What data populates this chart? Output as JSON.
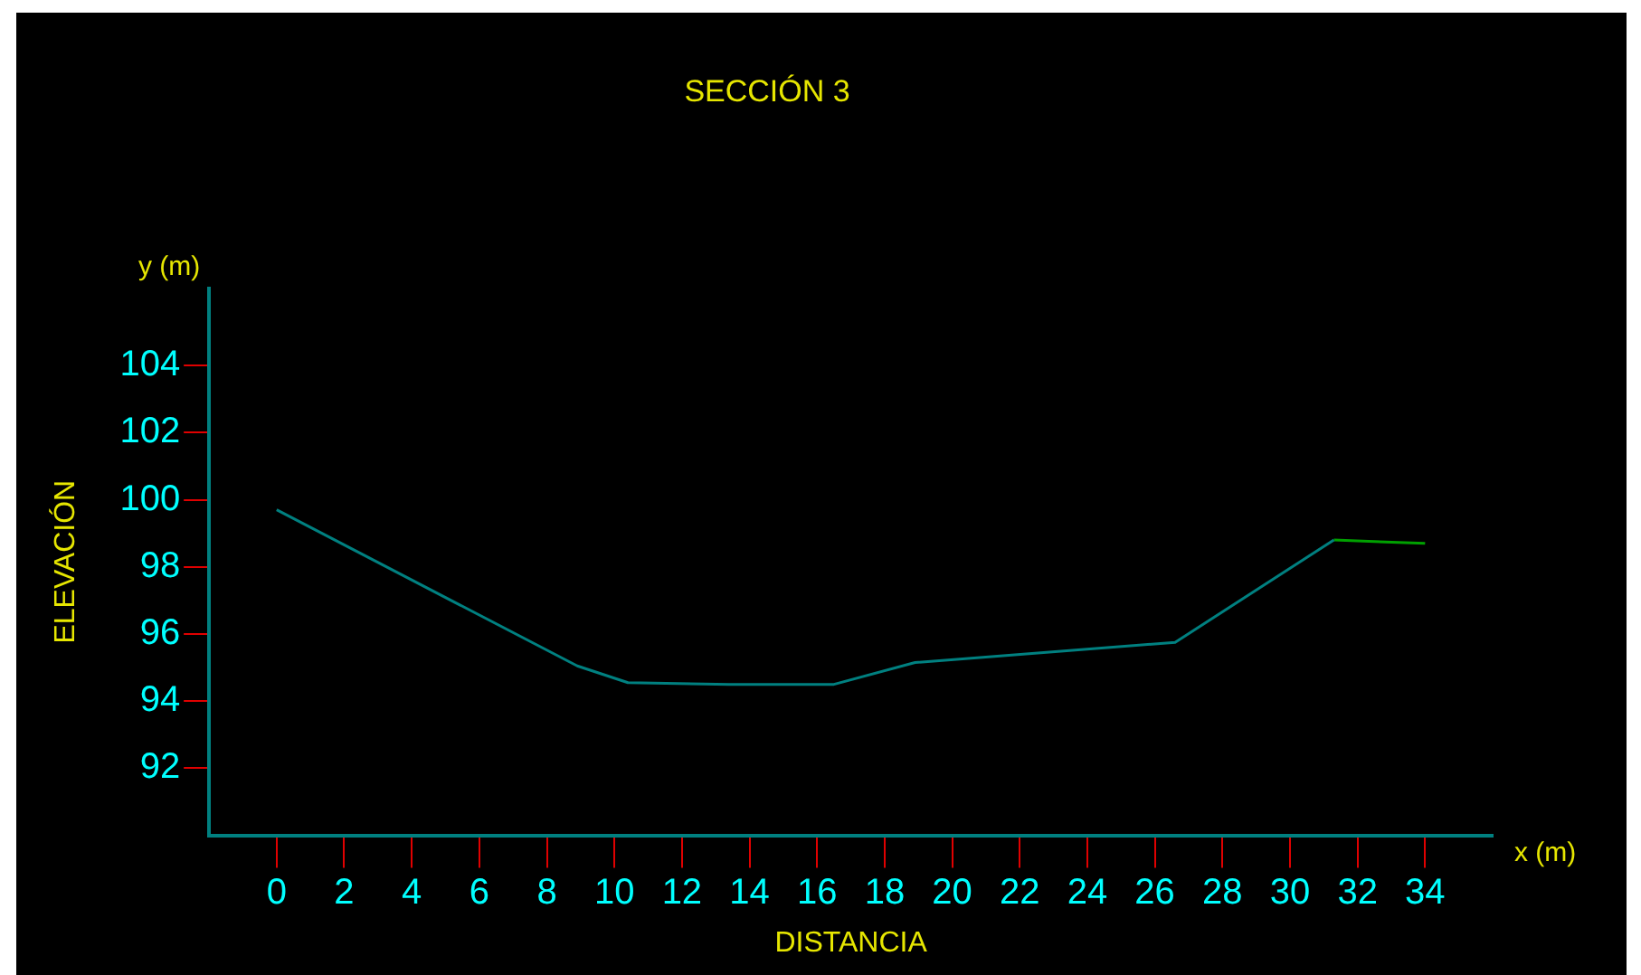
{
  "chart_data": {
    "type": "line",
    "title": "SECCIÓN 3",
    "xlabel": "DISTANCIA",
    "ylabel": "ELEVACIÓN",
    "annotations": [
      "y (m)",
      "x (m)"
    ],
    "series": [
      {
        "color": "#008080",
        "x": [
          0,
          8.9,
          10.4,
          13.4,
          16.5,
          18.9,
          26.6,
          31.3
        ],
        "values": [
          99.7,
          95.05,
          94.55,
          94.5,
          94.5,
          95.15,
          95.75,
          98.8
        ]
      },
      {
        "color": "#00a000",
        "x": [
          31.3,
          34
        ],
        "values": [
          98.8,
          98.7
        ]
      }
    ],
    "xlim": [
      -2,
      36
    ],
    "xticks": [
      0,
      2,
      4,
      6,
      8,
      10,
      12,
      14,
      16,
      18,
      20,
      22,
      24,
      26,
      28,
      30,
      32,
      34
    ],
    "ylim": [
      90,
      106.3
    ],
    "yticks": [
      92,
      94,
      96,
      98,
      100,
      102,
      104
    ],
    "grid": false,
    "legend": false,
    "marker": "none",
    "line_style": "solid"
  }
}
